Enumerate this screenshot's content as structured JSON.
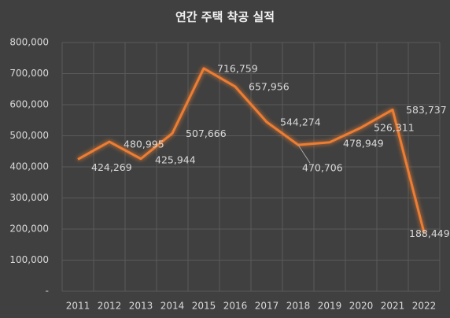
{
  "chart_data": {
    "type": "line",
    "title": "연간 주택 착공 실적",
    "categories": [
      "2011",
      "2012",
      "2013",
      "2014",
      "2015",
      "2016",
      "2017",
      "2018",
      "2019",
      "2020",
      "2021",
      "2022"
    ],
    "values": [
      424269,
      480995,
      425944,
      507666,
      716759,
      657956,
      544274,
      470706,
      478949,
      526311,
      583737,
      188449
    ],
    "value_labels": [
      "424,269",
      "480,995",
      "425,944",
      "507,666",
      "716,759",
      "657,956",
      "544,274",
      "470,706",
      "478,949",
      "526,311",
      "583,737",
      "188,449"
    ],
    "color": "#ed7d31",
    "ylim": [
      0,
      800000
    ],
    "yticks": [
      {
        "value": 0,
        "label": "-"
      },
      {
        "value": 100000,
        "label": "100,000"
      },
      {
        "value": 200000,
        "label": "200,000"
      },
      {
        "value": 300000,
        "label": "300,000"
      },
      {
        "value": 400000,
        "label": "400,000"
      },
      {
        "value": 500000,
        "label": "500,000"
      },
      {
        "value": 600000,
        "label": "600,000"
      },
      {
        "value": 700000,
        "label": "700,000"
      },
      {
        "value": 800000,
        "label": "800,000"
      }
    ],
    "grid": true
  }
}
